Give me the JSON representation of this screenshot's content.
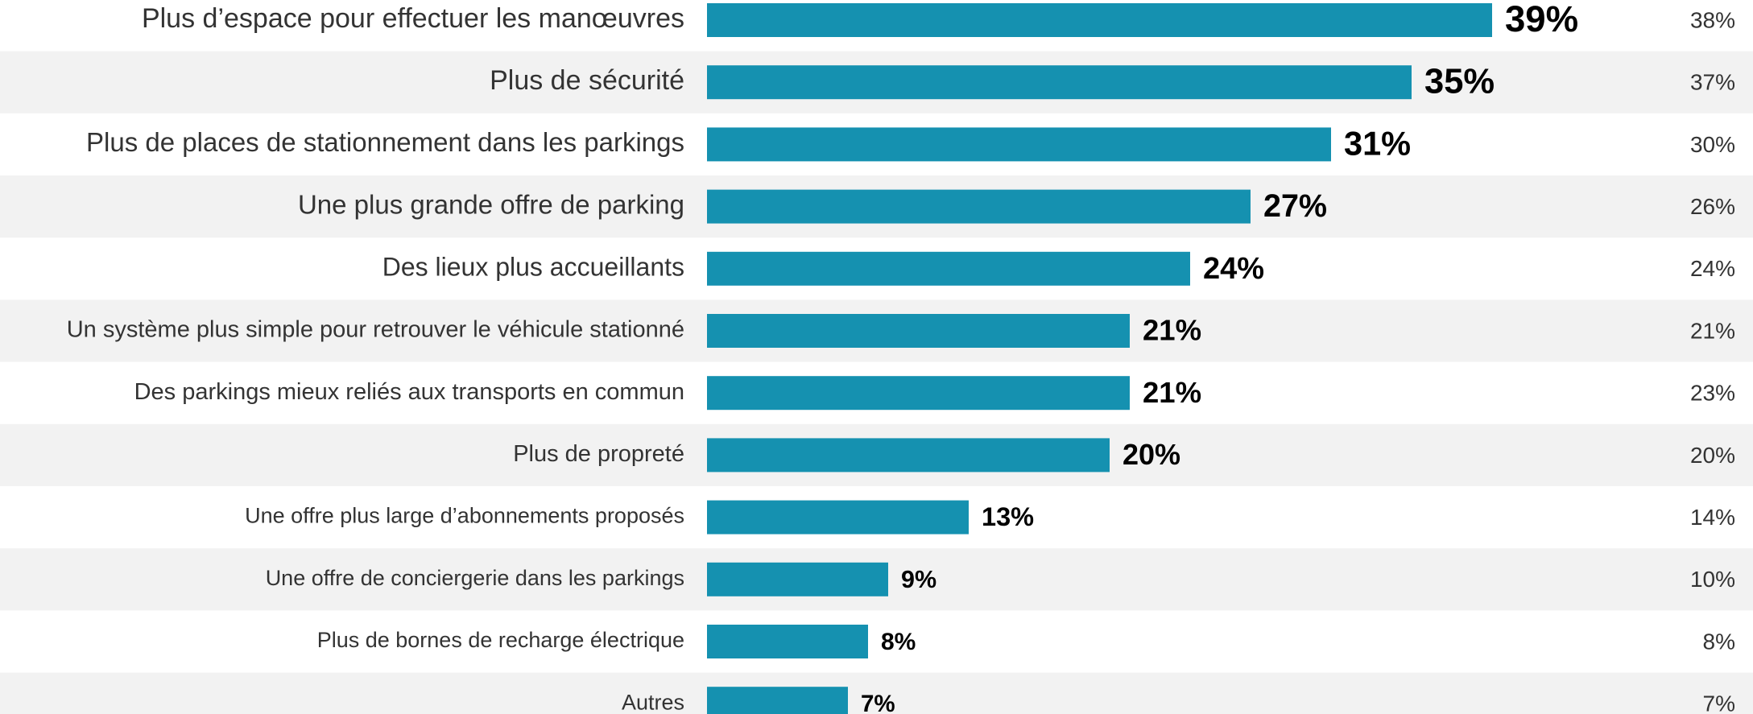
{
  "chart_data": {
    "type": "bar",
    "orientation": "horizontal",
    "categories": [
      "Plus d’espace pour effectuer les manœuvres",
      "Plus de sécurité",
      "Plus de places de stationnement dans les parkings",
      "Une plus grande offre de parking",
      "Des lieux plus accueillants",
      "Un système plus simple pour retrouver le véhicule stationné",
      "Des parkings mieux reliés aux transports en commun",
      "Plus de propreté",
      "Une offre plus large d’abonnements proposés",
      "Une offre de conciergerie dans les parkings",
      "Plus de bornes de recharge électrique",
      "Autres"
    ],
    "series": [
      {
        "color": "#1591b0",
        "values": [
          39,
          35,
          31,
          27,
          24,
          21,
          21,
          20,
          13,
          9,
          8,
          7
        ],
        "value_labels": [
          "39%",
          "35%",
          "31%",
          "27%",
          "24%",
          "21%",
          "21%",
          "20%",
          "13%",
          "9%",
          "8%",
          "7%"
        ]
      },
      {
        "values": [
          38,
          37,
          30,
          26,
          24,
          21,
          23,
          20,
          14,
          10,
          8,
          7
        ],
        "value_labels": [
          "38%",
          "37%",
          "30%",
          "26%",
          "24%",
          "21%",
          "23%",
          "20%",
          "14%",
          "10%",
          "8%",
          "7%"
        ]
      }
    ],
    "xlim": [
      0,
      40
    ]
  }
}
